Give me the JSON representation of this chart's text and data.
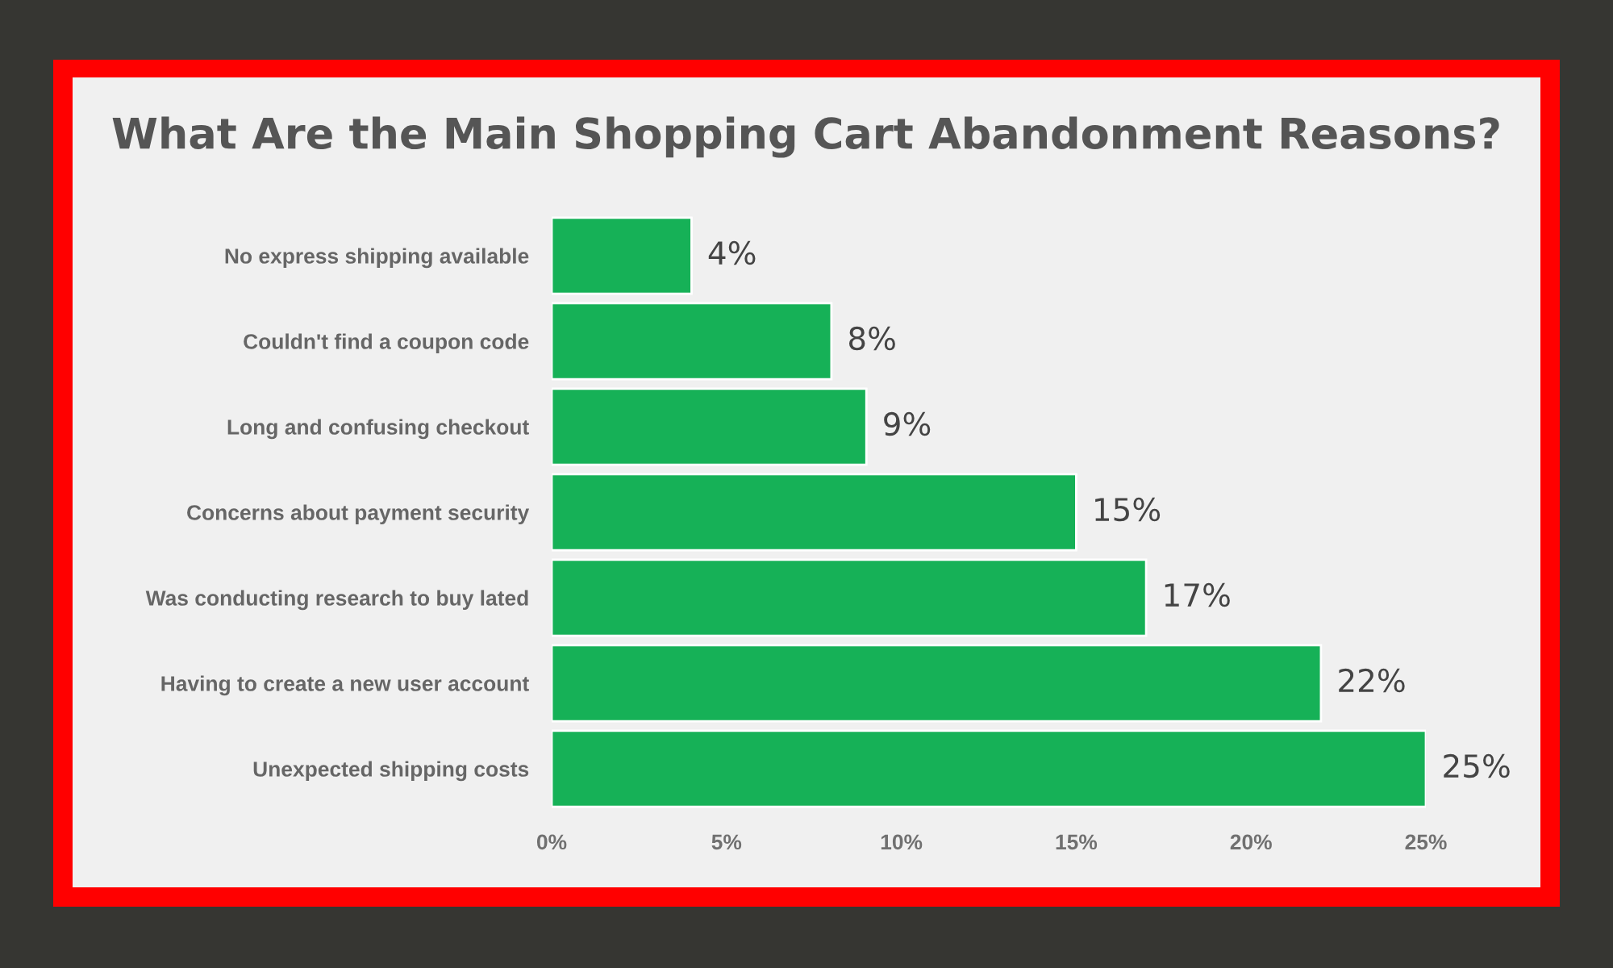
{
  "chart_data": {
    "type": "bar",
    "orientation": "horizontal",
    "title": "What Are the Main Shopping Cart Abandonment Reasons?",
    "categories": [
      "No express shipping available",
      "Couldn't find a coupon code",
      "Long and confusing checkout",
      "Concerns about payment security",
      "Was conducting research to buy lated",
      "Having to create a new user account",
      "Unexpected shipping costs"
    ],
    "values": [
      4,
      8,
      9,
      15,
      17,
      22,
      25
    ],
    "color": "#16b157",
    "value_labels": [
      "4%",
      "8%",
      "9%",
      "15%",
      "17%",
      "22%",
      "25%"
    ],
    "xlim": [
      0,
      25
    ],
    "xticks": [
      {
        "value": 0,
        "label": "0%"
      },
      {
        "value": 5,
        "label": "5%"
      },
      {
        "value": 10,
        "label": "10%"
      },
      {
        "value": 15,
        "label": "15%"
      },
      {
        "value": 20,
        "label": "20%"
      },
      {
        "value": 25,
        "label": "25%"
      }
    ]
  }
}
